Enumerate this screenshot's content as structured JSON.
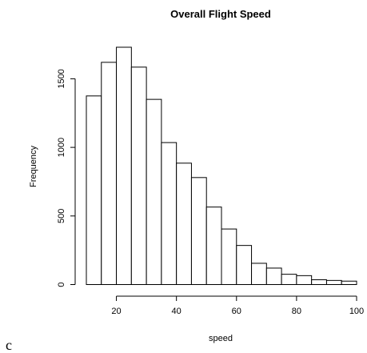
{
  "chart_data": {
    "type": "bar",
    "title": "Overall Flight Speed",
    "xlabel": "speed",
    "ylabel": "Frequency",
    "bin_edges": [
      10,
      15,
      20,
      25,
      30,
      35,
      40,
      45,
      50,
      55,
      60,
      65,
      70,
      75,
      80,
      85,
      90,
      95,
      100
    ],
    "values": [
      1375,
      1620,
      1730,
      1585,
      1350,
      1035,
      885,
      780,
      565,
      405,
      285,
      155,
      120,
      75,
      65,
      35,
      30,
      25
    ],
    "x_ticks": [
      20,
      40,
      60,
      80,
      100
    ],
    "y_ticks": [
      0,
      500,
      1000,
      1500
    ],
    "xlim": [
      10,
      100
    ],
    "ylim": [
      0,
      1730
    ],
    "grid": false,
    "legend": "none"
  },
  "panel_letter": "c"
}
